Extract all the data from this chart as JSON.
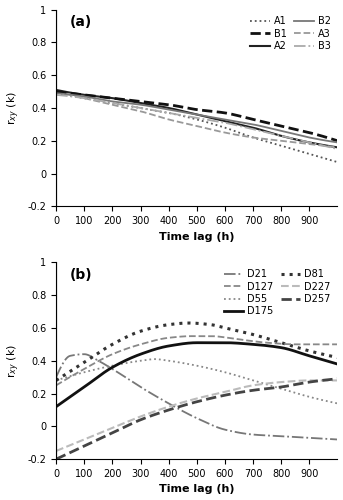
{
  "title_a": "(a)",
  "title_b": "(b)",
  "ylabel": "r$_{xy}$ (k)",
  "xlabel": "Time lag (h)",
  "xlim": [
    0,
    1000
  ],
  "ylim_a": [
    -0.2,
    1.0
  ],
  "ylim_b": [
    -0.2,
    1.0
  ],
  "yticks": [
    -0.2,
    0,
    0.2,
    0.4,
    0.6,
    0.8,
    1
  ],
  "xticks": [
    0,
    100,
    200,
    300,
    400,
    500,
    600,
    700,
    800,
    900
  ],
  "background_color": "#ffffff",
  "panel_a_order": [
    "A1",
    "B1",
    "A2",
    "B2",
    "A3",
    "B3"
  ],
  "panel_b_order": [
    "D21",
    "D127",
    "D55",
    "D175",
    "D81",
    "D227",
    "D257"
  ]
}
